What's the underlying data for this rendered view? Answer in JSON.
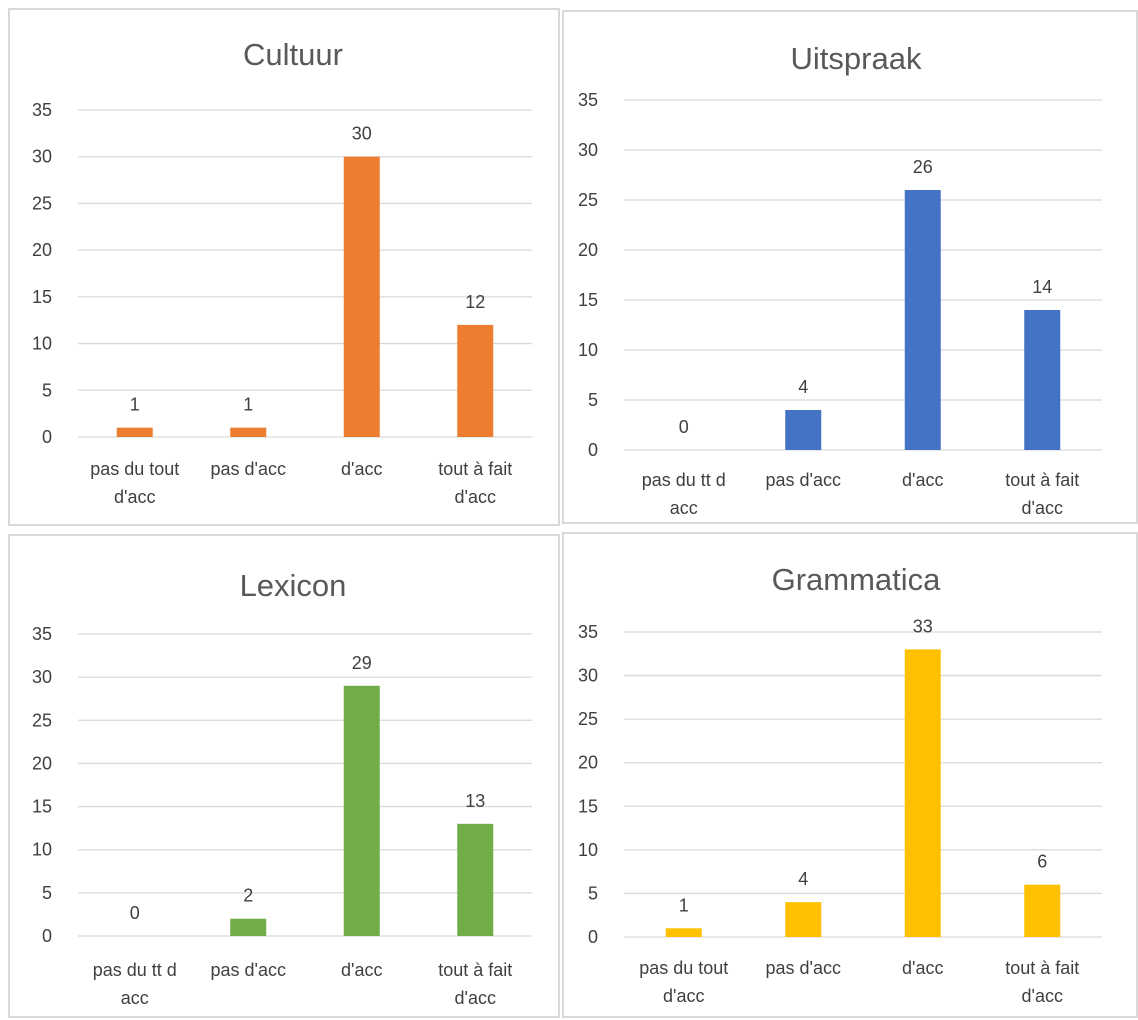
{
  "chart_data": [
    {
      "type": "bar",
      "title": "Cultuur",
      "categories": [
        [
          "pas du tout",
          "d'acc"
        ],
        [
          "pas d'acc"
        ],
        [
          "d'acc"
        ],
        [
          "tout à fait",
          "d'acc"
        ]
      ],
      "values": [
        1,
        1,
        30,
        12
      ],
      "ylim": [
        0,
        35
      ],
      "yticks": [
        0,
        5,
        10,
        15,
        20,
        25,
        30,
        35
      ],
      "color": "#ED7D31",
      "grid": true
    },
    {
      "type": "bar",
      "title": "Uitspraak",
      "categories": [
        [
          "pas du tt d",
          "acc"
        ],
        [
          "pas d'acc"
        ],
        [
          "d'acc"
        ],
        [
          "tout à fait",
          "d'acc"
        ]
      ],
      "values": [
        0,
        4,
        26,
        14
      ],
      "ylim": [
        0,
        35
      ],
      "yticks": [
        0,
        5,
        10,
        15,
        20,
        25,
        30,
        35
      ],
      "color": "#4472C4",
      "grid": true
    },
    {
      "type": "bar",
      "title": "Lexicon",
      "categories": [
        [
          "pas du tt d",
          "acc"
        ],
        [
          "pas d'acc"
        ],
        [
          "d'acc"
        ],
        [
          "tout à fait",
          "d'acc"
        ]
      ],
      "values": [
        0,
        2,
        29,
        13
      ],
      "ylim": [
        0,
        35
      ],
      "yticks": [
        0,
        5,
        10,
        15,
        20,
        25,
        30,
        35
      ],
      "color": "#70AD47",
      "grid": true
    },
    {
      "type": "bar",
      "title": "Grammatica",
      "categories": [
        [
          "pas du tout",
          "d'acc"
        ],
        [
          "pas d'acc"
        ],
        [
          "d'acc"
        ],
        [
          "tout à fait",
          "d'acc"
        ]
      ],
      "values": [
        1,
        4,
        33,
        6
      ],
      "ylim": [
        0,
        35
      ],
      "yticks": [
        0,
        5,
        10,
        15,
        20,
        25,
        30,
        35
      ],
      "color": "#FFC000",
      "grid": true
    }
  ]
}
